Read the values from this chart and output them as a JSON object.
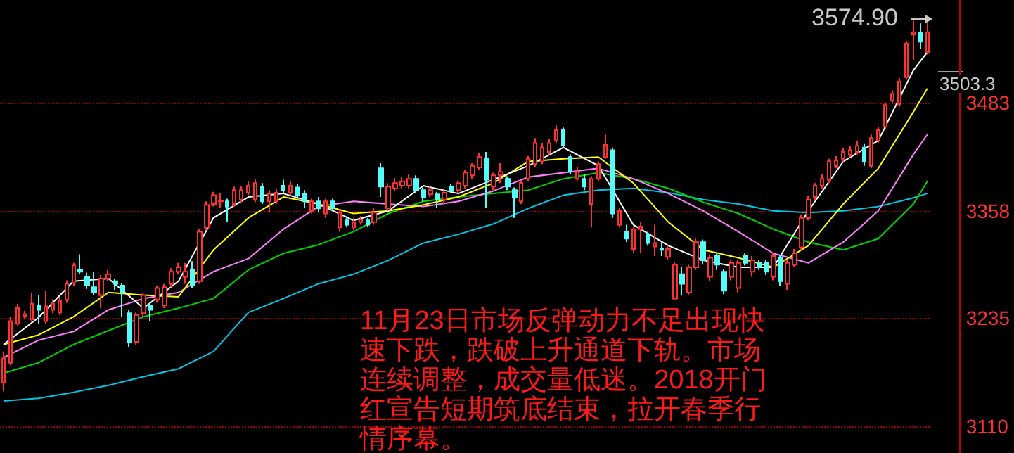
{
  "chart_data": {
    "type": "candlestick",
    "categories": [
      null,
      null,
      null,
      null,
      null,
      null,
      null,
      null,
      null,
      null,
      null,
      null,
      null,
      null,
      null,
      null,
      null,
      null,
      null,
      null,
      null,
      null,
      null,
      null,
      null,
      null,
      null,
      null,
      null,
      null,
      null,
      null,
      null,
      null,
      null,
      null,
      null,
      null,
      null,
      null,
      null,
      null,
      null,
      null,
      null,
      null,
      null,
      null,
      null,
      null,
      null,
      null,
      null,
      null,
      null,
      null,
      null,
      null,
      null,
      null,
      null,
      null,
      null,
      null,
      null,
      null,
      null,
      null,
      null,
      null,
      null,
      null,
      null,
      null,
      null,
      null,
      null,
      null,
      null,
      null,
      null,
      null,
      null,
      null,
      null,
      null,
      null,
      null,
      null,
      null,
      null,
      null,
      null,
      null,
      null,
      null,
      null,
      null,
      null,
      null,
      null,
      null,
      null,
      null,
      null,
      null,
      null,
      null,
      null,
      null,
      null,
      null,
      null,
      null,
      null,
      null,
      null,
      null,
      null,
      null,
      null,
      null,
      null,
      null,
      null,
      null,
      null,
      null,
      null,
      null,
      null,
      null,
      null
    ],
    "ohlc": [
      [
        3160,
        3196,
        3150,
        3188
      ],
      [
        3183,
        3236,
        3180,
        3231
      ],
      [
        3228,
        3251,
        3226,
        3246
      ],
      [
        3237,
        3243,
        3234,
        3239
      ],
      [
        3233,
        3264,
        3230,
        3251
      ],
      [
        3249,
        3261,
        3228,
        3244
      ],
      [
        3231,
        3266,
        3228,
        3248
      ],
      [
        3244,
        3256,
        3240,
        3251
      ],
      [
        3241,
        3259,
        3238,
        3254
      ],
      [
        3256,
        3278,
        3252,
        3274
      ],
      [
        3275,
        3298,
        3272,
        3295
      ],
      [
        3290,
        3308,
        3285,
        3288
      ],
      [
        3282,
        3287,
        3268,
        3272
      ],
      [
        3270,
        3288,
        3261,
        3264
      ],
      [
        3261,
        3284,
        3246,
        3280
      ],
      [
        3280,
        3290,
        3277,
        3285
      ],
      [
        3277,
        3280,
        3267,
        3274
      ],
      [
        3272,
        3275,
        3236,
        3264
      ],
      [
        3240,
        3244,
        3201,
        3207
      ],
      [
        3207,
        3241,
        3204,
        3238
      ],
      [
        3240,
        3264,
        3236,
        3261
      ],
      [
        3249,
        3252,
        3231,
        3244
      ],
      [
        3256,
        3272,
        3252,
        3269
      ],
      [
        3249,
        3274,
        3246,
        3270
      ],
      [
        3274,
        3292,
        3270,
        3288
      ],
      [
        3288,
        3298,
        3285,
        3293
      ],
      [
        3282,
        3298,
        3274,
        3288
      ],
      [
        3290,
        3300,
        3269,
        3272
      ],
      [
        3277,
        3337,
        3274,
        3334
      ],
      [
        3339,
        3369,
        3336,
        3365
      ],
      [
        3366,
        3380,
        3363,
        3376
      ],
      [
        3369,
        3379,
        3361,
        3370
      ],
      [
        3369,
        3372,
        3345,
        3363
      ],
      [
        3366,
        3386,
        3363,
        3382
      ],
      [
        3371,
        3387,
        3368,
        3382
      ],
      [
        3379,
        3392,
        3376,
        3387
      ],
      [
        3371,
        3395,
        3368,
        3390
      ],
      [
        3386,
        3390,
        3366,
        3369
      ],
      [
        3369,
        3382,
        3356,
        3378
      ],
      [
        3369,
        3384,
        3366,
        3379
      ],
      [
        3387,
        3394,
        3378,
        3382
      ],
      [
        3379,
        3392,
        3376,
        3387
      ],
      [
        3385,
        3389,
        3372,
        3376
      ],
      [
        3378,
        3382,
        3361,
        3369
      ],
      [
        3358,
        3372,
        3355,
        3369
      ],
      [
        3369,
        3374,
        3356,
        3361
      ],
      [
        3355,
        3372,
        3350,
        3369
      ],
      [
        3369,
        3372,
        3358,
        3361
      ],
      [
        3339,
        3360,
        3334,
        3356
      ],
      [
        3347,
        3352,
        3339,
        3342
      ],
      [
        3339,
        3350,
        3336,
        3345
      ],
      [
        3345,
        3352,
        3342,
        3348
      ],
      [
        3347,
        3350,
        3339,
        3342
      ],
      [
        3345,
        3361,
        3342,
        3356
      ],
      [
        3407,
        3413,
        3374,
        3386
      ],
      [
        3361,
        3390,
        3358,
        3386
      ],
      [
        3384,
        3396,
        3381,
        3390
      ],
      [
        3387,
        3397,
        3384,
        3392
      ],
      [
        3387,
        3400,
        3384,
        3395
      ],
      [
        3395,
        3399,
        3378,
        3382
      ],
      [
        3382,
        3385,
        3369,
        3374
      ],
      [
        3377,
        3386,
        3374,
        3382
      ],
      [
        3377,
        3380,
        3361,
        3371
      ],
      [
        3371,
        3382,
        3366,
        3379
      ],
      [
        3386,
        3389,
        3378,
        3381
      ],
      [
        3382,
        3393,
        3379,
        3390
      ],
      [
        3387,
        3405,
        3384,
        3402
      ],
      [
        3399,
        3413,
        3395,
        3410
      ],
      [
        3408,
        3425,
        3405,
        3420
      ],
      [
        3418,
        3426,
        3361,
        3394
      ],
      [
        3386,
        3402,
        3382,
        3399
      ],
      [
        3399,
        3413,
        3390,
        3403
      ],
      [
        3395,
        3398,
        3382,
        3386
      ],
      [
        3382,
        3385,
        3350,
        3374
      ],
      [
        3369,
        3393,
        3366,
        3390
      ],
      [
        3395,
        3421,
        3392,
        3418
      ],
      [
        3412,
        3442,
        3408,
        3436
      ],
      [
        3415,
        3436,
        3412,
        3431
      ],
      [
        3426,
        3441,
        3423,
        3436
      ],
      [
        3439,
        3457,
        3436,
        3451
      ],
      [
        3451,
        3454,
        3431,
        3434
      ],
      [
        3420,
        3423,
        3400,
        3403
      ],
      [
        3395,
        3408,
        3392,
        3403
      ],
      [
        3395,
        3400,
        3382,
        3386
      ],
      [
        3366,
        3398,
        3339,
        3395
      ],
      [
        3395,
        3415,
        3392,
        3412
      ],
      [
        3420,
        3446,
        3418,
        3434
      ],
      [
        3428,
        3431,
        3350,
        3355
      ],
      [
        3342,
        3361,
        3339,
        3358
      ],
      [
        3334,
        3342,
        3322,
        3326
      ],
      [
        3314,
        3340,
        3310,
        3337
      ],
      [
        3337,
        3345,
        3309,
        3340
      ],
      [
        3330,
        3334,
        3318,
        3321
      ],
      [
        3317,
        3342,
        3306,
        3321
      ],
      [
        3314,
        3322,
        3306,
        3313
      ],
      [
        3305,
        3318,
        3301,
        3314
      ],
      [
        3257,
        3299,
        3256,
        3296
      ],
      [
        3285,
        3293,
        3261,
        3274
      ],
      [
        3264,
        3296,
        3261,
        3293
      ],
      [
        3293,
        3326,
        3290,
        3322
      ],
      [
        3322,
        3325,
        3296,
        3301
      ],
      [
        3282,
        3308,
        3277,
        3304
      ],
      [
        3306,
        3309,
        3290,
        3296
      ],
      [
        3288,
        3291,
        3262,
        3266
      ],
      [
        3282,
        3301,
        3278,
        3298
      ],
      [
        3269,
        3301,
        3264,
        3298
      ],
      [
        3306,
        3309,
        3295,
        3298
      ],
      [
        3288,
        3306,
        3282,
        3301
      ],
      [
        3298,
        3301,
        3290,
        3293
      ],
      [
        3298,
        3301,
        3284,
        3288
      ],
      [
        3282,
        3309,
        3278,
        3306
      ],
      [
        3304,
        3307,
        3272,
        3277
      ],
      [
        3274,
        3301,
        3267,
        3298
      ],
      [
        3296,
        3314,
        3293,
        3309
      ],
      [
        3316,
        3354,
        3313,
        3350
      ],
      [
        3350,
        3375,
        3347,
        3371
      ],
      [
        3374,
        3390,
        3370,
        3387
      ],
      [
        3387,
        3400,
        3384,
        3395
      ],
      [
        3394,
        3418,
        3390,
        3415
      ],
      [
        3410,
        3421,
        3407,
        3416
      ],
      [
        3418,
        3431,
        3415,
        3426
      ],
      [
        3423,
        3433,
        3420,
        3428
      ],
      [
        3426,
        3438,
        3423,
        3433
      ],
      [
        3431,
        3435,
        3410,
        3415
      ],
      [
        3410,
        3446,
        3407,
        3442
      ],
      [
        3439,
        3455,
        3436,
        3451
      ],
      [
        3455,
        3483,
        3452,
        3480
      ],
      [
        3485,
        3497,
        3482,
        3493
      ],
      [
        3481,
        3511,
        3478,
        3507
      ],
      [
        3512,
        3554,
        3509,
        3551
      ],
      [
        3561,
        3577,
        3532,
        3564
      ],
      [
        3563,
        3574,
        3545,
        3553
      ],
      [
        3541,
        3574.9,
        3538,
        3564
      ]
    ],
    "colors": [
      "#ff3232",
      "#ff3232",
      "#ff3232",
      "#ff3232",
      "#ff3232",
      "#54fcfc",
      "#ff3232",
      "#ff3232",
      "#ff3232",
      "#ff3232",
      "#ff3232",
      "#54fcfc",
      "#54fcfc",
      "#54fcfc",
      "#ff3232",
      "#ff3232",
      "#54fcfc",
      "#54fcfc",
      "#54fcfc",
      "#ff3232",
      "#ff3232",
      "#54fcfc",
      "#ff3232",
      "#ff3232",
      "#ff3232",
      "#ff3232",
      "#ff3232",
      "#54fcfc",
      "#ff3232",
      "#ff3232",
      "#ff3232",
      "#ff3232",
      "#54fcfc",
      "#ff3232",
      "#ff3232",
      "#ff3232",
      "#ff3232",
      "#54fcfc",
      "#ff3232",
      "#ff3232",
      "#54fcfc",
      "#ff3232",
      "#54fcfc",
      "#54fcfc",
      "#ff3232",
      "#54fcfc",
      "#ff3232",
      "#54fcfc",
      "#ff3232",
      "#54fcfc",
      "#ff3232",
      "#ff3232",
      "#54fcfc",
      "#ff3232",
      "#54fcfc",
      "#ff3232",
      "#ff3232",
      "#ff3232",
      "#ff3232",
      "#54fcfc",
      "#54fcfc",
      "#ff3232",
      "#54fcfc",
      "#ff3232",
      "#54fcfc",
      "#ff3232",
      "#ff3232",
      "#ff3232",
      "#ff3232",
      "#54fcfc",
      "#ff3232",
      "#ff3232",
      "#54fcfc",
      "#54fcfc",
      "#ff3232",
      "#ff3232",
      "#ff3232",
      "#ff3232",
      "#ff3232",
      "#ff3232",
      "#54fcfc",
      "#54fcfc",
      "#ff3232",
      "#54fcfc",
      "#ff3232",
      "#ff3232",
      "#ff3232",
      "#54fcfc",
      "#ff3232",
      "#54fcfc",
      "#ff3232",
      "#ff3232",
      "#54fcfc",
      "#ff3232",
      "#54fcfc",
      "#ff3232",
      "#ff3232",
      "#54fcfc",
      "#ff3232",
      "#ff3232",
      "#54fcfc",
      "#ff3232",
      "#54fcfc",
      "#54fcfc",
      "#ff3232",
      "#ff3232",
      "#54fcfc",
      "#ff3232",
      "#54fcfc",
      "#54fcfc",
      "#ff3232",
      "#54fcfc",
      "#ff3232",
      "#ff3232",
      "#ff3232",
      "#ff3232",
      "#ff3232",
      "#ff3232",
      "#ff3232",
      "#ff3232",
      "#ff3232",
      "#ff3232",
      "#ff3232",
      "#54fcfc",
      "#ff3232",
      "#ff3232",
      "#ff3232",
      "#ff3232",
      "#ff3232",
      "#ff3232",
      "#ff3232",
      "#54fcfc",
      "#ff3232"
    ],
    "series": [
      {
        "type": "line",
        "color": "#00c8e6",
        "values": [
          3139,
          null,
          null,
          null,
          null,
          3142,
          null,
          null,
          null,
          null,
          3149,
          null,
          null,
          null,
          null,
          3157,
          null,
          null,
          null,
          null,
          3167,
          null,
          null,
          null,
          null,
          3176,
          null,
          null,
          null,
          null,
          3196,
          null,
          null,
          null,
          null,
          3241,
          null,
          null,
          null,
          null,
          3257,
          null,
          null,
          null,
          null,
          3274,
          null,
          null,
          null,
          null,
          3285,
          null,
          null,
          null,
          null,
          3301,
          null,
          null,
          null,
          null,
          3321,
          null,
          null,
          null,
          null,
          3331,
          null,
          null,
          null,
          null,
          3343,
          null,
          null,
          null,
          null,
          3361,
          null,
          null,
          null,
          null,
          3376,
          null,
          null,
          null,
          null,
          3382,
          null,
          null,
          null,
          null,
          3384,
          null,
          null,
          null,
          null,
          3379,
          null,
          null,
          null,
          null,
          3371,
          null,
          null,
          null,
          null,
          3366,
          null,
          null,
          null,
          null,
          3358,
          null,
          null,
          null,
          null,
          3356,
          null,
          null,
          null,
          null,
          3358,
          null,
          null,
          null,
          null,
          3363,
          null,
          null,
          null,
          null,
          3373,
          null,
          3378
        ]
      },
      {
        "type": "line",
        "color": "#00d200",
        "values": [
          3171,
          null,
          null,
          null,
          null,
          3183,
          null,
          null,
          null,
          null,
          3204,
          null,
          null,
          null,
          null,
          3220,
          null,
          null,
          null,
          null,
          3236,
          null,
          null,
          null,
          null,
          3246,
          null,
          null,
          null,
          null,
          3257,
          null,
          null,
          null,
          null,
          3290,
          null,
          null,
          null,
          null,
          3309,
          null,
          null,
          null,
          null,
          3319,
          null,
          null,
          null,
          null,
          3334,
          null,
          null,
          null,
          null,
          3355,
          null,
          null,
          null,
          null,
          3369,
          null,
          null,
          null,
          null,
          3374,
          null,
          null,
          null,
          null,
          3378,
          null,
          null,
          null,
          null,
          3382,
          null,
          null,
          null,
          null,
          3395,
          null,
          null,
          null,
          null,
          3402,
          null,
          null,
          null,
          null,
          3395,
          null,
          null,
          null,
          null,
          3384,
          null,
          null,
          null,
          null,
          3368,
          null,
          null,
          null,
          null,
          3355,
          null,
          null,
          null,
          null,
          3337,
          null,
          null,
          null,
          null,
          3322,
          null,
          null,
          null,
          null,
          3313,
          null,
          null,
          null,
          null,
          3326,
          null,
          null,
          null,
          null,
          3366,
          null,
          3392
        ]
      },
      {
        "type": "line",
        "color": "#ff80ff",
        "values": [
          3189,
          null,
          null,
          null,
          null,
          3209,
          null,
          null,
          null,
          null,
          3219,
          null,
          null,
          null,
          null,
          3244,
          null,
          null,
          null,
          null,
          3257,
          null,
          null,
          null,
          null,
          3264,
          null,
          null,
          null,
          null,
          3288,
          null,
          null,
          null,
          null,
          3303,
          null,
          null,
          null,
          null,
          3337,
          null,
          null,
          null,
          null,
          3363,
          null,
          null,
          null,
          null,
          3369,
          null,
          null,
          null,
          null,
          3366,
          null,
          null,
          null,
          null,
          3363,
          null,
          null,
          null,
          null,
          3369,
          null,
          null,
          null,
          null,
          3381,
          null,
          null,
          null,
          null,
          3397,
          null,
          null,
          null,
          null,
          3402,
          null,
          null,
          null,
          null,
          3407,
          null,
          null,
          null,
          null,
          3395,
          null,
          null,
          null,
          null,
          3378,
          null,
          null,
          null,
          null,
          3358,
          null,
          null,
          null,
          null,
          3334,
          null,
          null,
          null,
          null,
          3309,
          null,
          null,
          null,
          null,
          3298,
          null,
          null,
          null,
          null,
          3322,
          null,
          null,
          null,
          null,
          3358,
          null,
          null,
          null,
          null,
          3423,
          null,
          3446
        ]
      },
      {
        "type": "line",
        "color": "#ffff00",
        "values": [
          3204,
          null,
          null,
          null,
          null,
          3215,
          null,
          null,
          null,
          null,
          3236,
          null,
          null,
          null,
          null,
          3264,
          null,
          null,
          null,
          null,
          3261,
          null,
          null,
          null,
          null,
          3259,
          null,
          null,
          null,
          null,
          3313,
          null,
          null,
          null,
          null,
          3350,
          null,
          null,
          null,
          null,
          3374,
          null,
          null,
          null,
          null,
          3366,
          null,
          null,
          null,
          null,
          3355,
          null,
          null,
          null,
          null,
          3358,
          null,
          null,
          null,
          null,
          3365,
          null,
          null,
          null,
          null,
          3374,
          null,
          null,
          null,
          null,
          3390,
          null,
          null,
          null,
          null,
          3415,
          null,
          null,
          null,
          null,
          3418,
          null,
          null,
          null,
          null,
          3420,
          null,
          null,
          null,
          null,
          3390,
          null,
          null,
          null,
          null,
          3345,
          null,
          null,
          null,
          null,
          3313,
          null,
          null,
          null,
          null,
          3304,
          null,
          null,
          null,
          null,
          3293,
          null,
          null,
          null,
          null,
          3318,
          null,
          null,
          null,
          null,
          3366,
          null,
          null,
          null,
          null,
          3407,
          null,
          null,
          null,
          null,
          3472,
          null,
          3499
        ]
      },
      {
        "type": "line",
        "color": "#ffffff",
        "values": [
          3204,
          null,
          null,
          null,
          null,
          3235,
          null,
          null,
          null,
          null,
          3277,
          null,
          null,
          null,
          null,
          3280,
          null,
          null,
          null,
          null,
          3246,
          null,
          null,
          null,
          null,
          3277,
          null,
          null,
          null,
          null,
          3350,
          null,
          null,
          null,
          null,
          3374,
          null,
          null,
          null,
          null,
          3378,
          null,
          null,
          null,
          null,
          3366,
          null,
          null,
          null,
          null,
          3347,
          null,
          null,
          null,
          null,
          3358,
          null,
          null,
          null,
          null,
          3387,
          null,
          null,
          null,
          null,
          3378,
          null,
          null,
          null,
          null,
          3394,
          null,
          null,
          null,
          null,
          3410,
          null,
          null,
          null,
          null,
          3431,
          null,
          null,
          null,
          null,
          3410,
          null,
          null,
          null,
          null,
          3342,
          null,
          null,
          null,
          null,
          3318,
          null,
          null,
          null,
          null,
          3301,
          null,
          null,
          null,
          null,
          3293,
          null,
          null,
          null,
          null,
          3293,
          null,
          null,
          null,
          null,
          3358,
          null,
          null,
          null,
          null,
          3415,
          null,
          null,
          null,
          null,
          3439,
          null,
          null,
          null,
          null,
          3520,
          null,
          3541
        ]
      }
    ],
    "ylim": [
      3079,
      3601
    ],
    "yticks": [
      3110,
      3235,
      3358,
      3483
    ],
    "grid": "y",
    "annotations": [
      "3574.90",
      "3503.3",
      "11月23日市场反弹动力不足出现快速下跌，跌破上升通道下轨。市场连续调整，成交量低迷。2018开门红宣告短期筑底结束，拉开春季行情序幕。"
    ]
  }
}
